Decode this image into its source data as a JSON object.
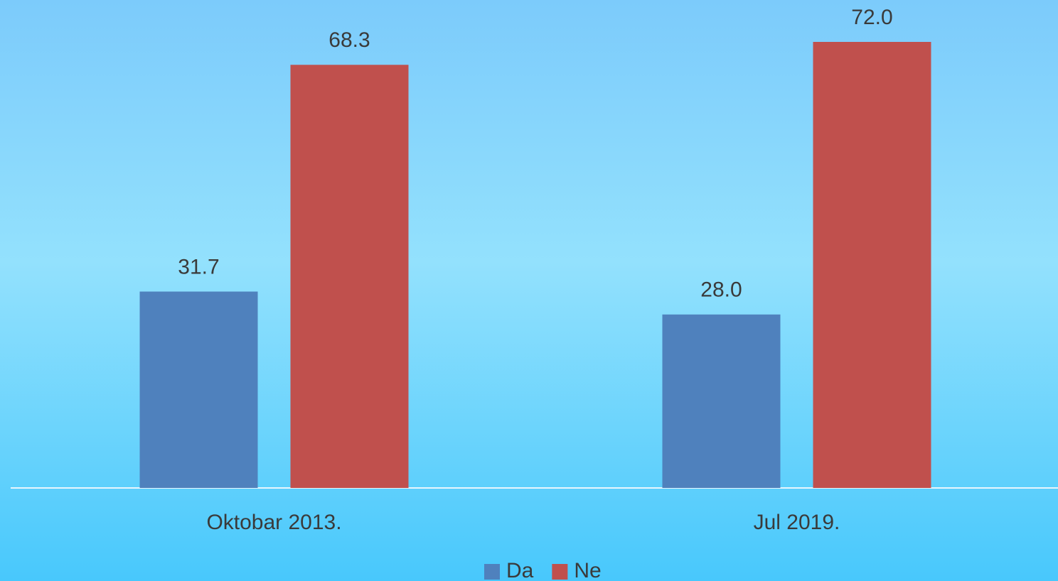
{
  "chart_data": {
    "type": "bar",
    "categories": [
      "Oktobar 2013.",
      "Jul 2019."
    ],
    "series": [
      {
        "name": "Da",
        "color": "#4f81bd",
        "values": [
          31.7,
          28
        ],
        "value_labels": [
          "31.7",
          "28.0"
        ]
      },
      {
        "name": "Ne",
        "color": "#c0504d",
        "values": [
          68.3,
          72
        ],
        "value_labels": [
          "68.3",
          "72.0"
        ]
      }
    ]
  }
}
